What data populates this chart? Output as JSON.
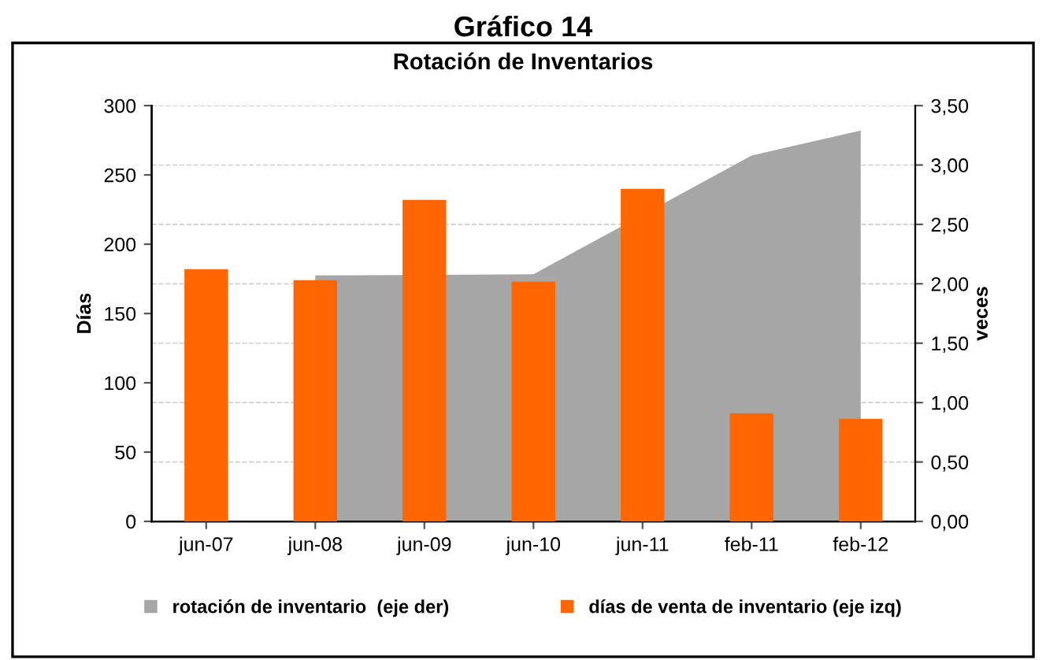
{
  "chart_data": {
    "type": "bar",
    "title": "Rotación de Inventarios",
    "annotations": [
      "Gráfico 14"
    ],
    "categories": [
      "jun-07",
      "jun-08",
      "jun-09",
      "jun-10",
      "jun-11",
      "feb-11",
      "feb-12"
    ],
    "series": [
      {
        "name": "rotación de inventario  (eje der)",
        "type": "area",
        "axis": "y2",
        "color": "#a6a6a6",
        "values": [
          null,
          2.07,
          null,
          2.08,
          null,
          3.08,
          3.29
        ]
      },
      {
        "name": "días de venta de inventario (eje izq)",
        "color": "#ff6600",
        "values": [
          182,
          174,
          232,
          173,
          240,
          78,
          74
        ]
      }
    ],
    "ylabel": "Días",
    "y2label": "veces",
    "ylim": [
      0,
      300
    ],
    "yticks": [
      0,
      50,
      100,
      150,
      200,
      250,
      300
    ],
    "y2lim": [
      0,
      3.5
    ],
    "y2ticks": [
      {
        "value": 0,
        "label": "0,00"
      },
      {
        "value": 0.5,
        "label": "0,50"
      },
      {
        "value": 1,
        "label": "1,00"
      },
      {
        "value": 1.5,
        "label": "1,50"
      },
      {
        "value": 2,
        "label": "2,00"
      },
      {
        "value": 2.5,
        "label": "2,50"
      },
      {
        "value": 3,
        "label": "3,00"
      },
      {
        "value": 3.5,
        "label": "3,50"
      }
    ],
    "grid": "y",
    "legend": "bottom"
  }
}
